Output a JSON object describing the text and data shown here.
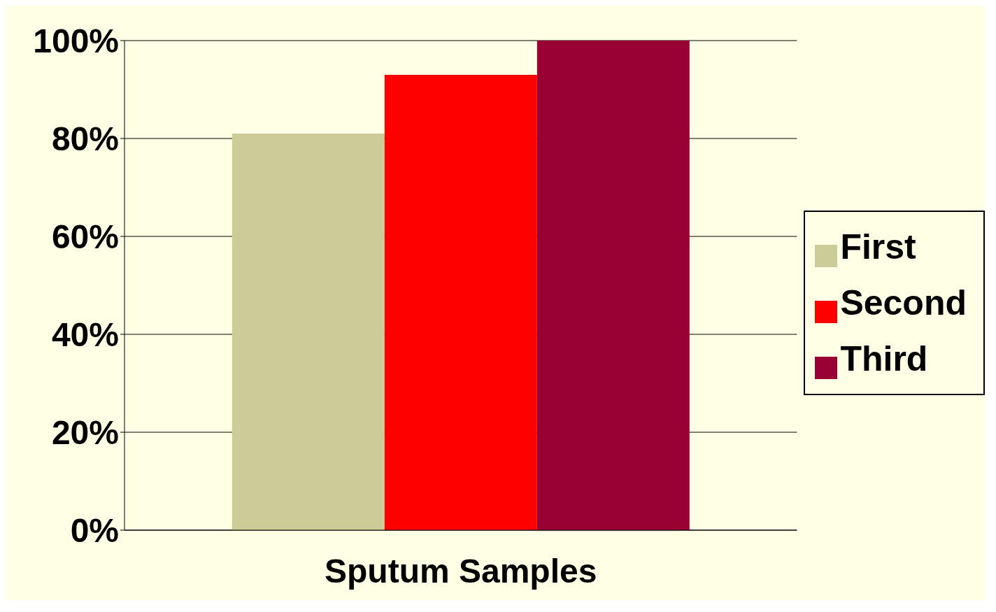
{
  "chart_data": {
    "type": "bar",
    "categories": [
      null
    ],
    "xlabel": "Sputum Samples",
    "series": [
      {
        "name": "First",
        "color": "#cccc99",
        "values": [
          81
        ]
      },
      {
        "name": "Second",
        "color": "#ff0000",
        "values": [
          93
        ]
      },
      {
        "name": "Third",
        "color": "#990033",
        "values": [
          100
        ]
      }
    ],
    "ylim": [
      0,
      100
    ],
    "yticks": [
      {
        "value": 0,
        "label": "0%"
      },
      {
        "value": 20,
        "label": "20%"
      },
      {
        "value": 40,
        "label": "40%"
      },
      {
        "value": 60,
        "label": "60%"
      },
      {
        "value": 80,
        "label": "80%"
      },
      {
        "value": 100,
        "label": "100%"
      }
    ],
    "grid": "y",
    "legend": "right"
  }
}
